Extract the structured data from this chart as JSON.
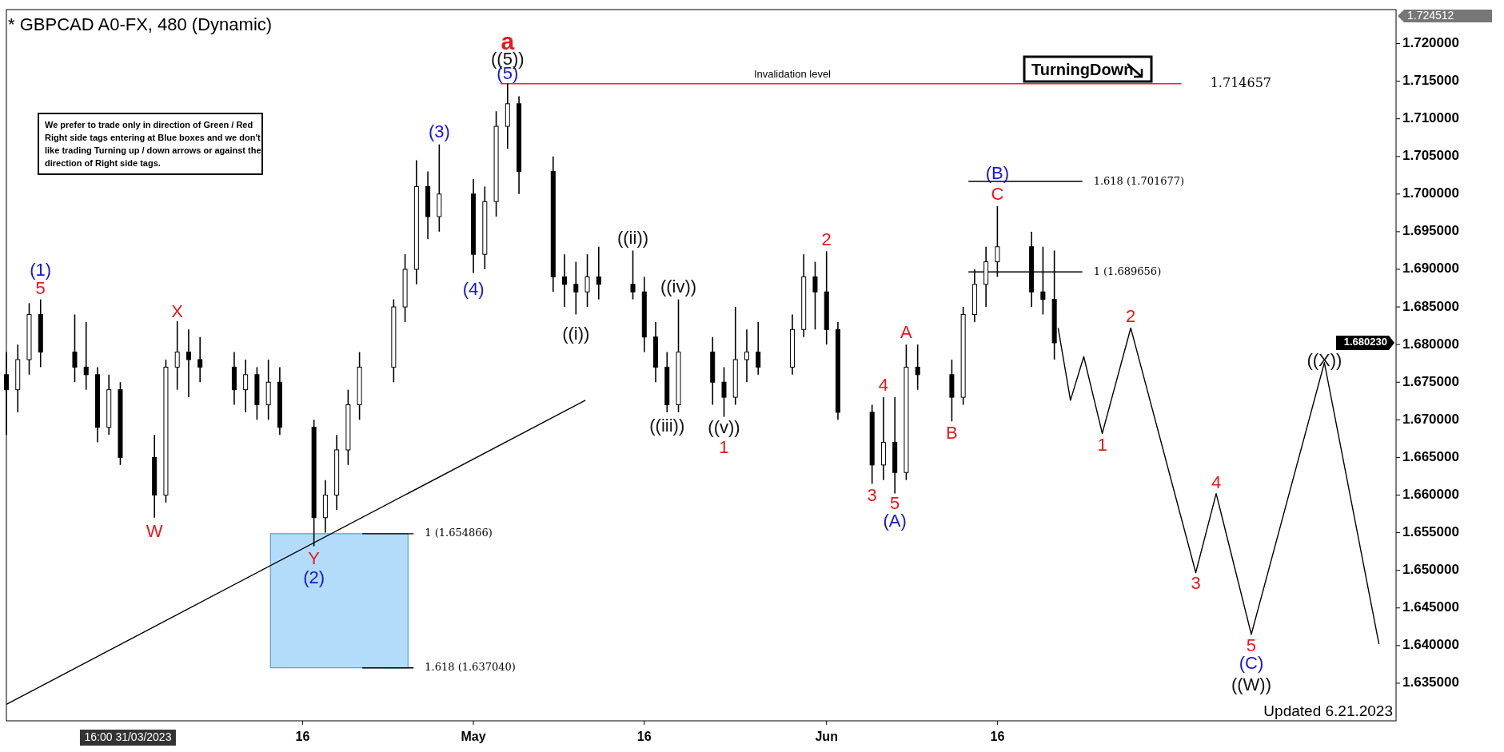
{
  "chart_data": {
    "type": "candlestick",
    "title": "* GBPCAD A0-FX, 480 (Dynamic)",
    "x": [
      "2023-03-21",
      "2023-03-22",
      "2023-03-23",
      "2023-03-24",
      "2023-03-27",
      "2023-03-28",
      "2023-03-29",
      "2023-03-30",
      "2023-03-31",
      "2023-04-03",
      "2023-04-04",
      "2023-04-05",
      "2023-04-06",
      "2023-04-07",
      "2023-04-10",
      "2023-04-11",
      "2023-04-12",
      "2023-04-13",
      "2023-04-14",
      "2023-04-17",
      "2023-04-18",
      "2023-04-19",
      "2023-04-20",
      "2023-04-21",
      "2023-04-24",
      "2023-04-25",
      "2023-04-26",
      "2023-04-27",
      "2023-04-28",
      "2023-05-01",
      "2023-05-02",
      "2023-05-03",
      "2023-05-04",
      "2023-05-05",
      "2023-05-08",
      "2023-05-09",
      "2023-05-10",
      "2023-05-11",
      "2023-05-12",
      "2023-05-15",
      "2023-05-16",
      "2023-05-17",
      "2023-05-18",
      "2023-05-19",
      "2023-05-22",
      "2023-05-23",
      "2023-05-24",
      "2023-05-25",
      "2023-05-26",
      "2023-05-29",
      "2023-05-30",
      "2023-05-31",
      "2023-06-01",
      "2023-06-02",
      "2023-06-05",
      "2023-06-06",
      "2023-06-07",
      "2023-06-08",
      "2023-06-09",
      "2023-06-12",
      "2023-06-13",
      "2023-06-14",
      "2023-06-15",
      "2023-06-16",
      "2023-06-19",
      "2023-06-20",
      "2023-06-21"
    ],
    "ohlc": [
      [
        1.676,
        1.679,
        1.668,
        1.674
      ],
      [
        1.674,
        1.68,
        1.671,
        1.678
      ],
      [
        1.678,
        1.6855,
        1.676,
        1.684
      ],
      [
        1.684,
        1.686,
        1.677,
        1.679
      ],
      [
        1.679,
        1.684,
        1.675,
        1.677
      ],
      [
        1.677,
        1.683,
        1.674,
        1.676
      ],
      [
        1.676,
        1.677,
        1.667,
        1.669
      ],
      [
        1.669,
        1.676,
        1.668,
        1.674
      ],
      [
        1.674,
        1.675,
        1.664,
        1.665
      ],
      [
        1.665,
        1.668,
        1.657,
        1.66
      ],
      [
        1.66,
        1.678,
        1.659,
        1.677
      ],
      [
        1.677,
        1.6831,
        1.674,
        1.679
      ],
      [
        1.679,
        1.682,
        1.673,
        1.678
      ],
      [
        1.678,
        1.681,
        1.675,
        1.677
      ],
      [
        1.677,
        1.679,
        1.672,
        1.674
      ],
      [
        1.674,
        1.678,
        1.671,
        1.676
      ],
      [
        1.676,
        1.677,
        1.67,
        1.672
      ],
      [
        1.672,
        1.678,
        1.67,
        1.675
      ],
      [
        1.675,
        1.677,
        1.668,
        1.669
      ],
      [
        1.669,
        1.67,
        1.6532,
        1.657
      ],
      [
        1.657,
        1.662,
        1.655,
        1.66
      ],
      [
        1.66,
        1.668,
        1.658,
        1.666
      ],
      [
        1.666,
        1.674,
        1.664,
        1.672
      ],
      [
        1.672,
        1.679,
        1.67,
        1.677
      ],
      [
        1.677,
        1.686,
        1.675,
        1.685
      ],
      [
        1.685,
        1.692,
        1.683,
        1.69
      ],
      [
        1.69,
        1.7045,
        1.688,
        1.701
      ],
      [
        1.701,
        1.703,
        1.694,
        1.697
      ],
      [
        1.697,
        1.7066,
        1.695,
        1.7
      ],
      [
        1.7,
        1.702,
        1.6895,
        1.692
      ],
      [
        1.692,
        1.701,
        1.69,
        1.699
      ],
      [
        1.699,
        1.711,
        1.697,
        1.709
      ],
      [
        1.709,
        1.714657,
        1.706,
        1.712
      ],
      [
        1.712,
        1.713,
        1.7,
        1.703
      ],
      [
        1.703,
        1.705,
        1.687,
        1.689
      ],
      [
        1.689,
        1.692,
        1.685,
        1.688
      ],
      [
        1.688,
        1.691,
        1.684,
        1.687
      ],
      [
        1.687,
        1.692,
        1.685,
        1.689
      ],
      [
        1.689,
        1.693,
        1.686,
        1.688
      ],
      [
        1.688,
        1.6925,
        1.686,
        1.687
      ],
      [
        1.687,
        1.689,
        1.679,
        1.681
      ],
      [
        1.681,
        1.683,
        1.675,
        1.677
      ],
      [
        1.677,
        1.679,
        1.671,
        1.672
      ],
      [
        1.672,
        1.686,
        1.671,
        1.679
      ],
      [
        1.679,
        1.681,
        1.672,
        1.675
      ],
      [
        1.675,
        1.677,
        1.6704,
        1.673
      ],
      [
        1.673,
        1.685,
        1.672,
        1.678
      ],
      [
        1.678,
        1.682,
        1.675,
        1.679
      ],
      [
        1.679,
        1.683,
        1.676,
        1.677
      ],
      [
        1.677,
        1.684,
        1.676,
        1.682
      ],
      [
        1.682,
        1.692,
        1.681,
        1.689
      ],
      [
        1.689,
        1.691,
        1.682,
        1.687
      ],
      [
        1.687,
        1.6924,
        1.68,
        1.682
      ],
      [
        1.682,
        1.683,
        1.67,
        1.671
      ],
      [
        1.671,
        1.672,
        1.6615,
        1.664
      ],
      [
        1.664,
        1.673,
        1.662,
        1.667
      ],
      [
        1.667,
        1.673,
        1.6602,
        1.663
      ],
      [
        1.663,
        1.68,
        1.662,
        1.677
      ],
      [
        1.677,
        1.68,
        1.674,
        1.676
      ],
      [
        1.676,
        1.678,
        1.6698,
        1.673
      ],
      [
        1.673,
        1.685,
        1.672,
        1.684
      ],
      [
        1.684,
        1.69,
        1.683,
        1.688
      ],
      [
        1.688,
        1.693,
        1.685,
        1.691
      ],
      [
        1.691,
        1.6984,
        1.689,
        1.693
      ],
      [
        1.693,
        1.695,
        1.685,
        1.687
      ],
      [
        1.687,
        1.693,
        1.684,
        1.686
      ],
      [
        1.686,
        1.6925,
        1.678,
        1.68023
      ]
    ],
    "series": [
      {
        "type": "line",
        "color": "#000000",
        "x": [
          "2023-06-21T08:00",
          "2023-06-22T10:00",
          "2023-06-23T14:00",
          "2023-06-25T05:00",
          "2023-06-27T17:00",
          "2023-07-03T10:00",
          "2023-07-05T05:00",
          "2023-07-08T07:00",
          "2023-07-14T17:00",
          "2023-07-19T12:00"
        ],
        "values": [
          1.6822,
          1.6726,
          1.6784,
          1.6682,
          1.6822,
          1.6497,
          1.6602,
          1.6415,
          1.6776,
          1.6402
        ]
      },
      {
        "type": "line",
        "color": "#000000",
        "x": [
          "2023-03-21",
          "2023-05-10T20:00"
        ],
        "values": [
          1.6322,
          1.6726
        ]
      },
      {
        "type": "line",
        "color": "#000000",
        "x": [
          "2023-04-21T06:00",
          "2023-04-25T18:00"
        ],
        "values": [
          1.654866,
          1.654866
        ]
      },
      {
        "type": "line",
        "color": "#000000",
        "x": [
          "2023-04-21T06:00",
          "2023-04-25T18:00"
        ],
        "values": [
          1.63704,
          1.63704
        ]
      },
      {
        "type": "line",
        "color": "#000000",
        "x": [
          "2023-06-13T11:00",
          "2023-06-23T11:00"
        ],
        "values": [
          1.701677,
          1.701677
        ]
      },
      {
        "type": "line",
        "color": "#000000",
        "x": [
          "2023-06-13T11:00",
          "2023-06-23T11:00"
        ],
        "values": [
          1.689656,
          1.689656
        ]
      },
      {
        "type": "line",
        "color": "#e8292b",
        "x": [
          "2023-05-03T09:00",
          "2023-07-02T04:00"
        ],
        "values": [
          1.714657,
          1.714657
        ]
      }
    ],
    "bands": [
      {
        "axis": "y",
        "from": 1.63704,
        "to": 1.654866,
        "color": "#b3dcfa"
      }
    ],
    "xlim": [
      "2023-03-21",
      "2023-07-21"
    ],
    "xticks": [
      {
        "value": "2023-03-31T16:00",
        "label": "16:00 31/03/2023"
      },
      {
        "value": "2023-04-16",
        "label": "16"
      },
      {
        "value": "2023-05-01",
        "label": "May"
      },
      {
        "value": "2023-05-16",
        "label": "16"
      },
      {
        "value": "2023-06-01",
        "label": "Jun"
      },
      {
        "value": "2023-06-16",
        "label": "16"
      }
    ],
    "ylim": [
      1.63,
      1.724512
    ],
    "yticks": [
      {
        "value": 1.635,
        "label": "1.635000"
      },
      {
        "value": 1.64,
        "label": "1.640000"
      },
      {
        "value": 1.645,
        "label": "1.645000"
      },
      {
        "value": 1.65,
        "label": "1.650000"
      },
      {
        "value": 1.655,
        "label": "1.655000"
      },
      {
        "value": 1.66,
        "label": "1.660000"
      },
      {
        "value": 1.665,
        "label": "1.665000"
      },
      {
        "value": 1.67,
        "label": "1.670000"
      },
      {
        "value": 1.675,
        "label": "1.675000"
      },
      {
        "value": 1.68,
        "label": "1.680000"
      },
      {
        "value": 1.685,
        "label": "1.685000"
      },
      {
        "value": 1.69,
        "label": "1.690000"
      },
      {
        "value": 1.695,
        "label": "1.695000"
      },
      {
        "value": 1.7,
        "label": "1.700000"
      },
      {
        "value": 1.705,
        "label": "1.705000"
      },
      {
        "value": 1.71,
        "label": "1.710000"
      },
      {
        "value": 1.715,
        "label": "1.715000"
      },
      {
        "value": 1.72,
        "label": "1.720000"
      }
    ],
    "annotations": [
      "We prefer to trade only in direction of Green / Red Right side tags entering at Blue boxes and we don't like trading Turning up / down arrows or against the direction of Right side tags.",
      "TurningDown",
      "Updated 6.21.2023",
      "1.724512",
      "1.680230",
      {
        "text": "Invalidation level",
        "x": "2023-05-29",
        "y": 1.714657
      },
      {
        "text": "1.714657",
        "x": "2023-07-02T04:00",
        "y": 1.714657
      },
      {
        "text": "1 (1.654866)",
        "x": "2023-04-25T18:00",
        "y": 1.654866
      },
      {
        "text": "1.618 (1.637040)",
        "x": "2023-04-25T18:00",
        "y": 1.63704
      },
      {
        "text": "1.618 (1.701677)",
        "x": "2023-06-23T11:00",
        "y": 1.701677
      },
      {
        "text": "1 (1.689656)",
        "x": "2023-06-23T11:00",
        "y": 1.689656
      },
      {
        "text": "a",
        "x": "2023-05-04",
        "y": 1.714657
      },
      {
        "text": "5",
        "x": "2023-03-24",
        "y": 1.686
      },
      {
        "text": "X",
        "x": "2023-04-05",
        "y": 1.6831
      },
      {
        "text": "W",
        "x": "2023-04-03",
        "y": 1.657
      },
      {
        "text": "Y",
        "x": "2023-04-17",
        "y": 1.6532
      },
      {
        "text": "2",
        "x": "2023-06-01",
        "y": 1.6924
      },
      {
        "text": "1",
        "x": "2023-05-23",
        "y": 1.6704
      },
      {
        "text": "3",
        "x": "2023-06-05",
        "y": 1.6615
      },
      {
        "text": "4",
        "x": "2023-06-06",
        "y": 1.673
      },
      {
        "text": "5",
        "x": "2023-06-07",
        "y": 1.6602
      },
      {
        "text": "A",
        "x": "2023-06-08",
        "y": 1.68
      },
      {
        "text": "B",
        "x": "2023-06-12",
        "y": 1.6698
      },
      {
        "text": "C",
        "x": "2023-06-16",
        "y": 1.6984
      },
      {
        "text": "1",
        "x": "2023-06-25T05:00",
        "y": 1.6682
      },
      {
        "text": "2",
        "x": "2023-06-27T17:00",
        "y": 1.6822
      },
      {
        "text": "3",
        "x": "2023-07-03T10:00",
        "y": 1.6497
      },
      {
        "text": "4",
        "x": "2023-07-05T05:00",
        "y": 1.6602
      },
      {
        "text": "5",
        "x": "2023-07-08T07:00",
        "y": 1.6415
      },
      {
        "text": "(1)",
        "x": "2023-03-24",
        "y": 1.686
      },
      {
        "text": "(2)",
        "x": "2023-04-17",
        "y": 1.6532
      },
      {
        "text": "(3)",
        "x": "2023-04-28",
        "y": 1.7066
      },
      {
        "text": "(4)",
        "x": "2023-05-01",
        "y": 1.6895
      },
      {
        "text": "(5)",
        "x": "2023-05-04",
        "y": 1.714657
      },
      {
        "text": "(A)",
        "x": "2023-06-07",
        "y": 1.6602
      },
      {
        "text": "(B)",
        "x": "2023-06-16",
        "y": 1.6984
      },
      {
        "text": "(C)",
        "x": "2023-07-08T07:00",
        "y": 1.6415
      },
      {
        "text": "((5))",
        "x": "2023-05-04",
        "y": 1.714657
      },
      {
        "text": "((i))",
        "x": "2023-05-10",
        "y": 1.684
      },
      {
        "text": "((ii))",
        "x": "2023-05-15",
        "y": 1.6925
      },
      {
        "text": "((iii))",
        "x": "2023-05-18",
        "y": 1.671
      },
      {
        "text": "((iv))",
        "x": "2023-05-19",
        "y": 1.686
      },
      {
        "text": "((v))",
        "x": "2023-05-23",
        "y": 1.6704
      },
      {
        "text": "((X))",
        "x": "2023-07-14T17:00",
        "y": 1.6776
      },
      {
        "text": "((W))",
        "x": "2023-07-08T07:00",
        "y": 1.6415
      }
    ]
  }
}
